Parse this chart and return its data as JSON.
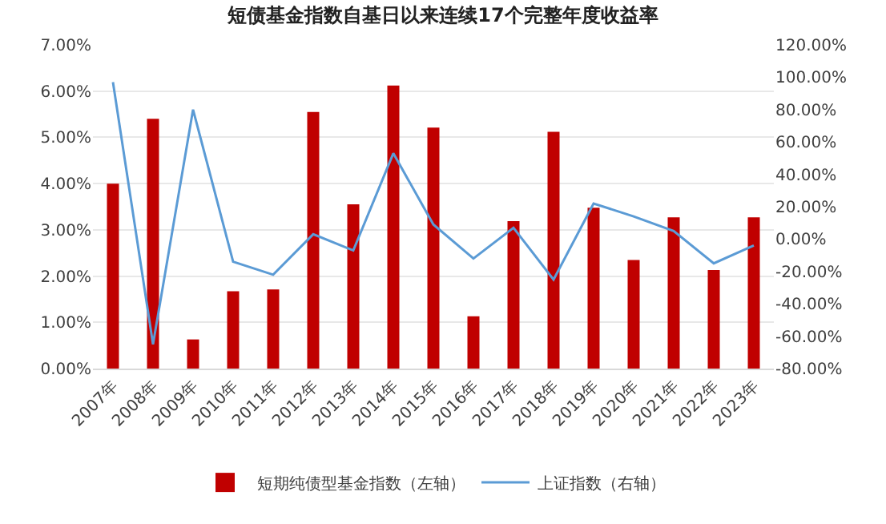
{
  "chart_data": {
    "type": "bar",
    "title": "短债基金指数自基日以来连续17个完整年度收益率",
    "categories": [
      "2007年",
      "2008年",
      "2009年",
      "2010年",
      "2011年",
      "2012年",
      "2013年",
      "2014年",
      "2015年",
      "2016年",
      "2017年",
      "2018年",
      "2019年",
      "2020年",
      "2021年",
      "2022年",
      "2023年"
    ],
    "series": [
      {
        "name": "短期纯债型基金指数（左轴）",
        "color": "#c00000",
        "values": [
          4.0,
          5.4,
          0.63,
          1.67,
          1.71,
          5.55,
          3.55,
          6.12,
          5.21,
          1.13,
          3.19,
          5.12,
          3.48,
          2.35,
          3.27,
          2.13,
          3.27
        ]
      },
      {
        "name": "上证指数（右轴）",
        "type": "line",
        "axis": "y2",
        "color": "#5b9bd5",
        "values": [
          97,
          -65,
          80,
          -14,
          -22,
          3,
          -7,
          53,
          9,
          -12,
          7,
          -25,
          22,
          14,
          5,
          -15,
          -4
        ]
      }
    ],
    "ylim": [
      0,
      7
    ],
    "yticks": [
      {
        "value": 0,
        "label": "0.00%"
      },
      {
        "value": 1,
        "label": "1.00%"
      },
      {
        "value": 2,
        "label": "2.00%"
      },
      {
        "value": 3,
        "label": "3.00%"
      },
      {
        "value": 4,
        "label": "4.00%"
      },
      {
        "value": 5,
        "label": "5.00%"
      },
      {
        "value": 6,
        "label": "6.00%"
      },
      {
        "value": 7,
        "label": "7.00%"
      }
    ],
    "y2lim": [
      -80,
      120
    ],
    "y2ticks": [
      {
        "value": -80,
        "label": "-80.00%"
      },
      {
        "value": -60,
        "label": "-60.00%"
      },
      {
        "value": -40,
        "label": "-40.00%"
      },
      {
        "value": -20,
        "label": "-20.00%"
      },
      {
        "value": 0,
        "label": "0.00%"
      },
      {
        "value": 20,
        "label": "20.00%"
      },
      {
        "value": 40,
        "label": "40.00%"
      },
      {
        "value": 60,
        "label": "60.00%"
      },
      {
        "value": 80,
        "label": "80.00%"
      },
      {
        "value": 100,
        "label": "100.00%"
      },
      {
        "value": 120,
        "label": "120.00%"
      }
    ],
    "grid": "y",
    "legend": "bottom",
    "marker": "none",
    "line_style": "solid"
  }
}
